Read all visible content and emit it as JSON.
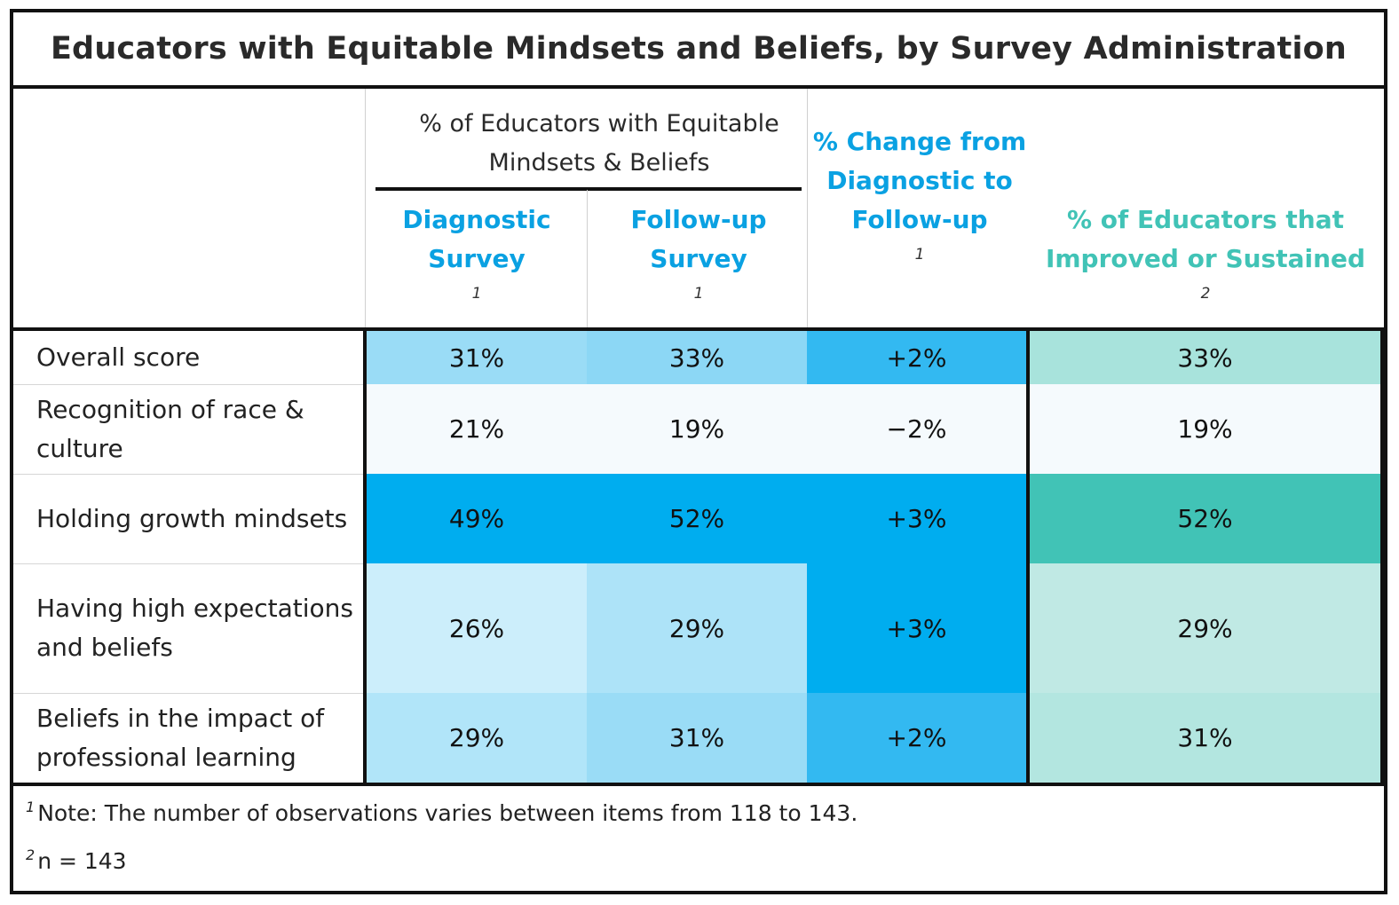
{
  "title": "Educators with Equitable Mindsets and Beliefs, by Survey Administration",
  "colors": {
    "blue_header": "#0aa1e2",
    "teal_header": "#41c3b6",
    "border": "#111111"
  },
  "header": {
    "group_label": "% of Educators with Equitable Mindsets & Beliefs",
    "columns": [
      {
        "title": "Diagnostic Survey",
        "note": "1"
      },
      {
        "title": "Follow-up Survey",
        "note": "1"
      },
      {
        "title": "% Change from Diagnostic to Follow-up",
        "note": "1"
      },
      {
        "title": "% of Educators that Improved or Sustained",
        "note": "2"
      }
    ]
  },
  "rows": [
    {
      "label": "Overall score",
      "values": [
        "31%",
        "33%",
        "+2%",
        "33%"
      ],
      "colors": [
        "#9adcf6",
        "#8cd7f5",
        "#33b9f1",
        "#a8e3dc"
      ]
    },
    {
      "label": "Recognition of race & culture",
      "values": [
        "21%",
        "19%",
        "−2%",
        "19%"
      ],
      "colors": [
        "#f5fafd",
        "#f5fafd",
        "#f5fafd",
        "#f5fafd"
      ]
    },
    {
      "label": "Holding growth mindsets",
      "values": [
        "49%",
        "52%",
        "+3%",
        "52%"
      ],
      "colors": [
        "#00adef",
        "#00adef",
        "#00adef",
        "#41c3b6"
      ]
    },
    {
      "label": "Having high expectations and beliefs",
      "values": [
        "26%",
        "29%",
        "+3%",
        "29%"
      ],
      "colors": [
        "#cceefb",
        "#ade3f8",
        "#00adef",
        "#c0e9e4"
      ]
    },
    {
      "label": "Beliefs in the impact of professional learning",
      "values": [
        "29%",
        "31%",
        "+2%",
        "31%"
      ],
      "colors": [
        "#b1e5f9",
        "#9adcf6",
        "#33b9f1",
        "#b3e6e0"
      ]
    }
  ],
  "footnotes": [
    {
      "mark": "1",
      "text": "Note: The number of observations varies between items from 118 to 143."
    },
    {
      "mark": "2",
      "text": "n = 143"
    }
  ],
  "chart_data": {
    "type": "table",
    "title": "Educators with Equitable Mindsets and Beliefs, by Survey Administration",
    "columns": [
      "Diagnostic Survey",
      "Follow-up Survey",
      "% Change from Diagnostic to Follow-up",
      "% of Educators that Improved or Sustained"
    ],
    "rows": [
      "Overall score",
      "Recognition of race & culture",
      "Holding growth mindsets",
      "Having high expectations and beliefs",
      "Beliefs in the impact of professional learning"
    ],
    "values": [
      [
        31,
        33,
        2,
        33
      ],
      [
        21,
        19,
        -2,
        19
      ],
      [
        49,
        52,
        3,
        52
      ],
      [
        26,
        29,
        3,
        29
      ],
      [
        29,
        31,
        2,
        31
      ]
    ]
  }
}
